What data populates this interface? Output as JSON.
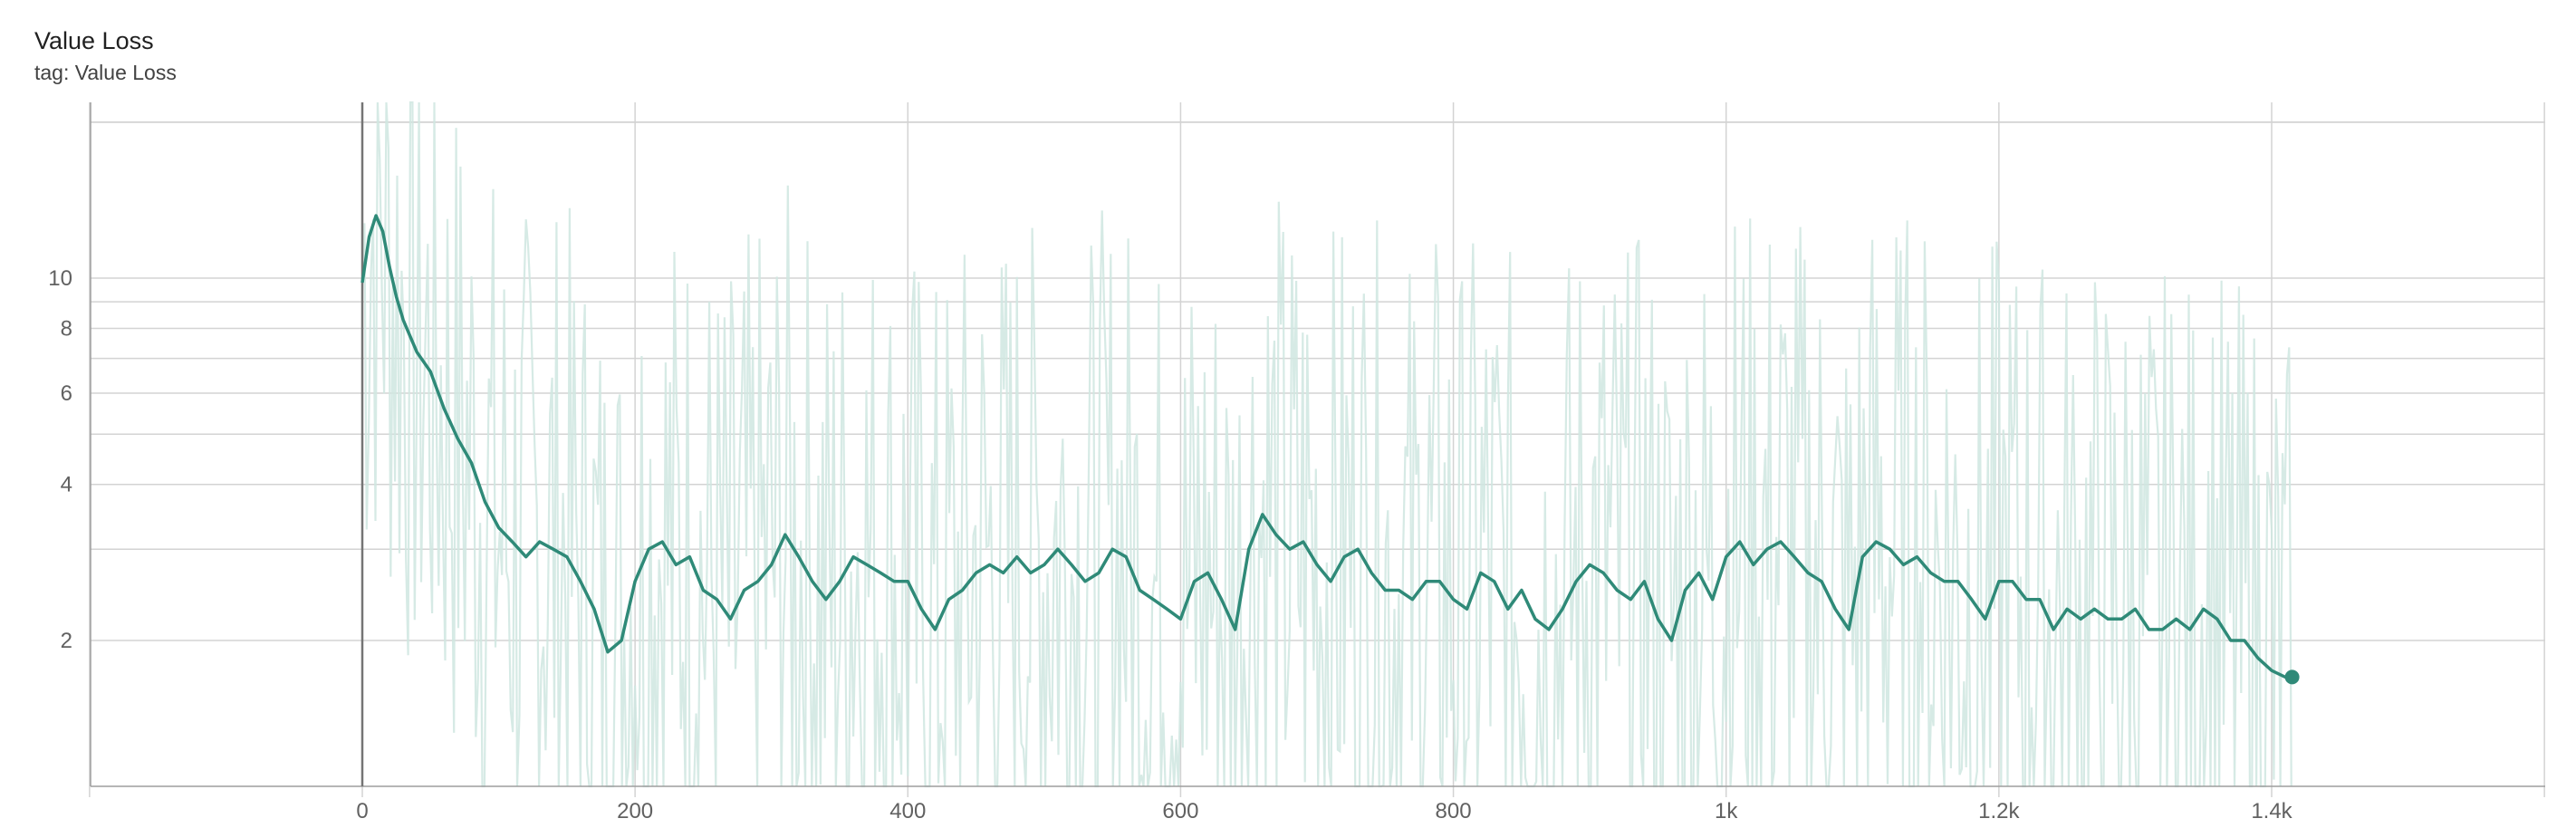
{
  "title": "Value Loss",
  "subtitle": "tag: Value Loss",
  "colors": {
    "smoothed": "#2f8a78",
    "raw": "#cfe6e0",
    "grid": "#d3d3d3",
    "axis": "#9e9e9e",
    "zero_line": "#757575"
  },
  "chart_data": {
    "type": "line",
    "title": "Value Loss",
    "x_scale": "linear",
    "y_scale": "log",
    "xlim": [
      -200,
      1600
    ],
    "ylim": [
      0.95,
      19
    ],
    "x_ticks": [
      0,
      200,
      400,
      600,
      800,
      1000,
      1200,
      1400
    ],
    "x_tick_labels": [
      "0",
      "200",
      "400",
      "600",
      "800",
      "1k",
      "1.2k",
      "1.4k"
    ],
    "y_ticks": [
      2,
      4,
      6,
      8,
      10
    ],
    "y_tick_labels": [
      "2",
      "4",
      "6",
      "8",
      "10"
    ],
    "y_minor_gridlines": [
      3,
      5,
      7,
      9,
      20
    ],
    "grid": true,
    "series": [
      {
        "role": "smoothed",
        "x": [
          0,
          5,
          10,
          15,
          20,
          25,
          30,
          40,
          50,
          60,
          70,
          80,
          90,
          100,
          110,
          120,
          130,
          140,
          150,
          160,
          170,
          180,
          190,
          200,
          210,
          220,
          230,
          240,
          250,
          260,
          270,
          280,
          290,
          300,
          310,
          320,
          330,
          340,
          350,
          360,
          370,
          380,
          390,
          400,
          410,
          420,
          430,
          440,
          450,
          460,
          470,
          480,
          490,
          500,
          510,
          520,
          530,
          540,
          550,
          560,
          570,
          580,
          590,
          600,
          610,
          620,
          630,
          640,
          650,
          660,
          670,
          680,
          690,
          700,
          710,
          720,
          730,
          740,
          750,
          760,
          770,
          780,
          790,
          800,
          810,
          820,
          830,
          840,
          850,
          860,
          870,
          880,
          890,
          900,
          910,
          920,
          930,
          940,
          950,
          960,
          970,
          980,
          990,
          1000,
          1010,
          1020,
          1030,
          1040,
          1050,
          1060,
          1070,
          1080,
          1090,
          1100,
          1110,
          1120,
          1130,
          1140,
          1150,
          1160,
          1170,
          1180,
          1190,
          1200,
          1210,
          1220,
          1230,
          1240,
          1250,
          1260,
          1270,
          1280,
          1290,
          1300,
          1310,
          1320,
          1330,
          1340,
          1350,
          1360,
          1370,
          1380,
          1390,
          1400,
          1410,
          1415
        ],
        "y": [
          9.8,
          12.0,
          13.2,
          12.3,
          10.5,
          9.2,
          8.3,
          7.2,
          6.6,
          5.6,
          4.9,
          4.4,
          3.7,
          3.3,
          3.1,
          2.9,
          3.1,
          3.0,
          2.9,
          2.6,
          2.3,
          1.9,
          2.0,
          2.6,
          3.0,
          3.1,
          2.8,
          2.9,
          2.5,
          2.4,
          2.2,
          2.5,
          2.6,
          2.8,
          3.2,
          2.9,
          2.6,
          2.4,
          2.6,
          2.9,
          2.8,
          2.7,
          2.6,
          2.6,
          2.3,
          2.1,
          2.4,
          2.5,
          2.7,
          2.8,
          2.7,
          2.9,
          2.7,
          2.8,
          3.0,
          2.8,
          2.6,
          2.7,
          3.0,
          2.9,
          2.5,
          2.4,
          2.3,
          2.2,
          2.6,
          2.7,
          2.4,
          2.1,
          3.0,
          3.5,
          3.2,
          3.0,
          3.1,
          2.8,
          2.6,
          2.9,
          3.0,
          2.7,
          2.5,
          2.5,
          2.4,
          2.6,
          2.6,
          2.4,
          2.3,
          2.7,
          2.6,
          2.3,
          2.5,
          2.2,
          2.1,
          2.3,
          2.6,
          2.8,
          2.7,
          2.5,
          2.4,
          2.6,
          2.2,
          2.0,
          2.5,
          2.7,
          2.4,
          2.9,
          3.1,
          2.8,
          3.0,
          3.1,
          2.9,
          2.7,
          2.6,
          2.3,
          2.1,
          2.9,
          3.1,
          3.0,
          2.8,
          2.9,
          2.7,
          2.6,
          2.6,
          2.4,
          2.2,
          2.6,
          2.6,
          2.4,
          2.4,
          2.1,
          2.3,
          2.2,
          2.3,
          2.2,
          2.2,
          2.3,
          2.1,
          2.1,
          2.2,
          2.1,
          2.3,
          2.2,
          2.0,
          2.0,
          1.85,
          1.75,
          1.7,
          1.7
        ]
      }
    ]
  }
}
